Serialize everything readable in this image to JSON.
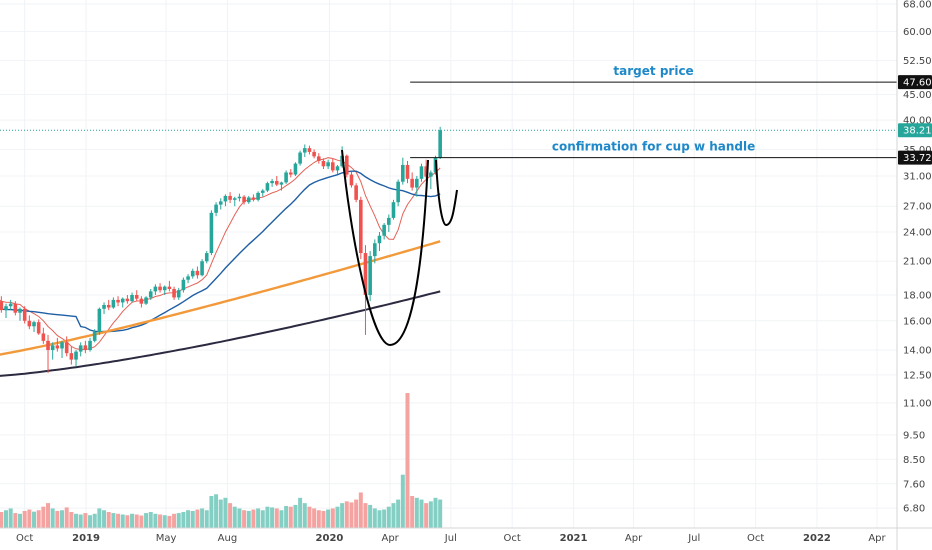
{
  "chart_data": {
    "type": "candlestick",
    "scale": "log",
    "ylim": [
      6.5,
      68
    ],
    "y_ticks": [
      "68.00",
      "60.00",
      "52.50",
      "45.00",
      "40.00",
      "35.00",
      "31.00",
      "27.00",
      "24.00",
      "21.00",
      "18.00",
      "16.00",
      "14.00",
      "12.50",
      "11.00",
      "9.50",
      "8.50",
      "7.60",
      "6.80"
    ],
    "x_ticks": [
      "Oct",
      "2019",
      "May",
      "Aug",
      "2020",
      "Apr",
      "Jul",
      "Oct",
      "2021",
      "Apr",
      "Jul",
      "Oct",
      "2022",
      "Apr"
    ],
    "xlim": [
      "2018-08-01",
      "2022-05-01"
    ],
    "grid": true,
    "price_labels": [
      {
        "value": 47.6,
        "text": "47.60",
        "style": "dark"
      },
      {
        "value": 38.21,
        "text": "38.21",
        "style": "teal"
      },
      {
        "value": 33.72,
        "text": "33.72",
        "style": "dark"
      }
    ],
    "annotations": [
      {
        "text": "target price",
        "y": 47.6,
        "x": "2020-05-01",
        "x_end": "2022-05-01"
      },
      {
        "text": "confirmation for cup w handle",
        "y": 33.72,
        "x": "2020-05-01",
        "x_end": "2022-05-01"
      }
    ],
    "ohlc_weekly_start": "2018-08-06",
    "candles": [
      [
        19.2,
        20.0,
        18.0,
        18.5
      ],
      [
        18.5,
        18.8,
        17.0,
        17.2
      ],
      [
        17.2,
        17.8,
        16.5,
        17.5
      ],
      [
        17.5,
        17.9,
        16.6,
        16.8
      ],
      [
        16.8,
        17.3,
        16.2,
        17.1
      ],
      [
        17.1,
        17.6,
        16.8,
        17.3
      ],
      [
        17.3,
        17.5,
        16.4,
        16.6
      ],
      [
        16.6,
        17.0,
        16.0,
        16.9
      ],
      [
        16.9,
        17.1,
        15.8,
        16.0
      ],
      [
        16.0,
        16.4,
        15.4,
        15.6
      ],
      [
        15.6,
        16.0,
        15.2,
        15.9
      ],
      [
        15.9,
        16.1,
        15.0,
        15.1
      ],
      [
        15.1,
        15.5,
        14.4,
        14.6
      ],
      [
        14.6,
        15.0,
        12.6,
        14.0
      ],
      [
        14.0,
        14.5,
        13.4,
        14.3
      ],
      [
        14.3,
        14.8,
        13.9,
        14.1
      ],
      [
        14.1,
        14.6,
        13.5,
        14.5
      ],
      [
        14.5,
        14.9,
        13.6,
        13.8
      ],
      [
        13.8,
        14.2,
        13.1,
        13.4
      ],
      [
        13.4,
        14.0,
        13.0,
        13.9
      ],
      [
        13.9,
        14.5,
        13.6,
        14.3
      ],
      [
        14.3,
        14.6,
        13.8,
        14.0
      ],
      [
        14.0,
        14.8,
        13.9,
        14.6
      ],
      [
        14.6,
        15.4,
        14.5,
        15.2
      ],
      [
        15.2,
        17.0,
        15.0,
        16.9
      ],
      [
        16.9,
        17.4,
        16.5,
        17.2
      ],
      [
        17.2,
        17.6,
        16.8,
        17.0
      ],
      [
        17.0,
        17.8,
        16.9,
        17.6
      ],
      [
        17.6,
        17.9,
        17.1,
        17.4
      ],
      [
        17.4,
        17.8,
        17.0,
        17.7
      ],
      [
        17.7,
        18.0,
        17.3,
        17.5
      ],
      [
        17.5,
        18.2,
        17.4,
        18.0
      ],
      [
        18.0,
        18.4,
        17.5,
        17.7
      ],
      [
        17.7,
        17.9,
        17.0,
        17.3
      ],
      [
        17.3,
        17.9,
        17.2,
        17.8
      ],
      [
        17.8,
        18.5,
        17.6,
        18.3
      ],
      [
        18.3,
        18.9,
        18.0,
        18.7
      ],
      [
        18.7,
        19.0,
        18.2,
        18.4
      ],
      [
        18.4,
        18.8,
        18.0,
        18.7
      ],
      [
        18.7,
        19.2,
        18.3,
        18.5
      ],
      [
        18.5,
        18.7,
        17.6,
        17.8
      ],
      [
        17.8,
        18.6,
        17.6,
        18.4
      ],
      [
        18.4,
        19.5,
        18.2,
        19.3
      ],
      [
        19.3,
        19.8,
        19.0,
        19.6
      ],
      [
        19.6,
        20.3,
        19.4,
        20.1
      ],
      [
        20.1,
        20.5,
        19.4,
        19.7
      ],
      [
        19.7,
        21.2,
        19.6,
        21.0
      ],
      [
        21.0,
        22.0,
        20.8,
        21.8
      ],
      [
        21.8,
        26.5,
        21.6,
        26.2
      ],
      [
        26.2,
        27.5,
        25.8,
        27.2
      ],
      [
        27.2,
        28.0,
        26.6,
        27.6
      ],
      [
        27.6,
        28.5,
        27.0,
        28.3
      ],
      [
        28.3,
        28.8,
        27.4,
        27.8
      ],
      [
        27.8,
        28.2,
        27.0,
        28.0
      ],
      [
        28.0,
        28.6,
        27.6,
        28.2
      ],
      [
        28.2,
        28.4,
        27.2,
        27.5
      ],
      [
        27.5,
        28.3,
        27.3,
        28.1
      ],
      [
        28.1,
        28.5,
        27.6,
        27.8
      ],
      [
        27.8,
        28.9,
        27.6,
        28.7
      ],
      [
        28.7,
        29.2,
        28.2,
        29.0
      ],
      [
        29.0,
        30.2,
        28.8,
        30.0
      ],
      [
        30.0,
        30.6,
        29.5,
        30.3
      ],
      [
        30.3,
        31.0,
        29.6,
        29.8
      ],
      [
        29.8,
        30.2,
        29.0,
        30.1
      ],
      [
        30.1,
        31.8,
        29.9,
        31.5
      ],
      [
        31.5,
        32.0,
        30.8,
        31.2
      ],
      [
        31.2,
        33.0,
        31.0,
        32.8
      ],
      [
        32.8,
        34.8,
        32.5,
        34.5
      ],
      [
        34.5,
        35.8,
        33.8,
        35.2
      ],
      [
        35.2,
        35.6,
        34.2,
        34.6
      ],
      [
        34.6,
        35.0,
        33.6,
        33.9
      ],
      [
        33.9,
        34.4,
        32.8,
        33.2
      ],
      [
        33.2,
        33.6,
        32.0,
        32.4
      ],
      [
        32.4,
        33.4,
        32.0,
        33.0
      ],
      [
        33.0,
        33.5,
        31.5,
        31.8
      ],
      [
        31.8,
        32.6,
        31.3,
        32.4
      ],
      [
        32.4,
        35.5,
        32.2,
        34.0
      ],
      [
        34.0,
        34.2,
        30.8,
        31.2
      ],
      [
        31.2,
        31.6,
        29.4,
        29.7
      ],
      [
        29.7,
        30.0,
        27.5,
        27.8
      ],
      [
        27.8,
        28.2,
        21.2,
        21.8
      ],
      [
        21.8,
        22.6,
        15.0,
        18.0
      ],
      [
        18.0,
        22.0,
        17.5,
        21.5
      ],
      [
        21.5,
        23.2,
        20.8,
        22.8
      ],
      [
        22.8,
        24.0,
        22.0,
        23.6
      ],
      [
        23.6,
        25.0,
        23.2,
        24.8
      ],
      [
        24.8,
        26.0,
        24.0,
        25.6
      ],
      [
        25.6,
        27.8,
        25.4,
        27.5
      ],
      [
        27.5,
        30.5,
        27.0,
        30.2
      ],
      [
        30.2,
        33.7,
        29.8,
        32.6
      ],
      [
        32.6,
        33.2,
        30.0,
        30.6
      ],
      [
        30.6,
        31.5,
        29.0,
        29.4
      ],
      [
        29.4,
        31.0,
        28.2,
        30.6
      ],
      [
        30.6,
        32.8,
        30.2,
        32.4
      ],
      [
        32.4,
        33.4,
        30.6,
        30.9
      ],
      [
        30.9,
        31.8,
        29.2,
        31.5
      ],
      [
        31.5,
        34.0,
        31.2,
        33.7
      ],
      [
        33.7,
        38.8,
        33.5,
        38.2
      ]
    ],
    "volume": [
      0.55,
      0.5,
      0.6,
      0.45,
      0.5,
      0.55,
      0.42,
      0.4,
      0.48,
      0.52,
      0.46,
      0.5,
      0.6,
      0.7,
      0.55,
      0.48,
      0.5,
      0.58,
      0.45,
      0.4,
      0.38,
      0.42,
      0.36,
      0.4,
      0.55,
      0.5,
      0.45,
      0.42,
      0.4,
      0.38,
      0.36,
      0.4,
      0.38,
      0.35,
      0.42,
      0.45,
      0.4,
      0.38,
      0.36,
      0.34,
      0.4,
      0.42,
      0.45,
      0.5,
      0.48,
      0.52,
      0.55,
      0.5,
      0.9,
      0.95,
      0.8,
      0.85,
      0.7,
      0.6,
      0.55,
      0.5,
      0.48,
      0.52,
      0.55,
      0.5,
      0.6,
      0.58,
      0.55,
      0.5,
      0.62,
      0.6,
      0.65,
      0.85,
      0.7,
      0.6,
      0.55,
      0.5,
      0.48,
      0.52,
      0.55,
      0.6,
      0.7,
      0.75,
      0.72,
      0.8,
      1.0,
      0.7,
      0.65,
      0.55,
      0.5,
      0.52,
      0.6,
      0.7,
      0.8,
      1.5,
      3.8,
      0.9,
      0.85,
      0.8,
      0.7,
      0.75,
      0.85,
      0.8
    ],
    "moving_averages": [
      {
        "color": "#e0453a",
        "kind": "short"
      },
      {
        "color": "#1f5fa5",
        "kind": "medium"
      },
      {
        "color": "#f29a3b",
        "kind": "long"
      },
      {
        "color": "#2b2a40",
        "kind": "longest"
      }
    ],
    "colors": {
      "up": "#26a69a",
      "down": "#ef5350",
      "annotation": "#1e88c8",
      "cup": "#000000"
    }
  }
}
